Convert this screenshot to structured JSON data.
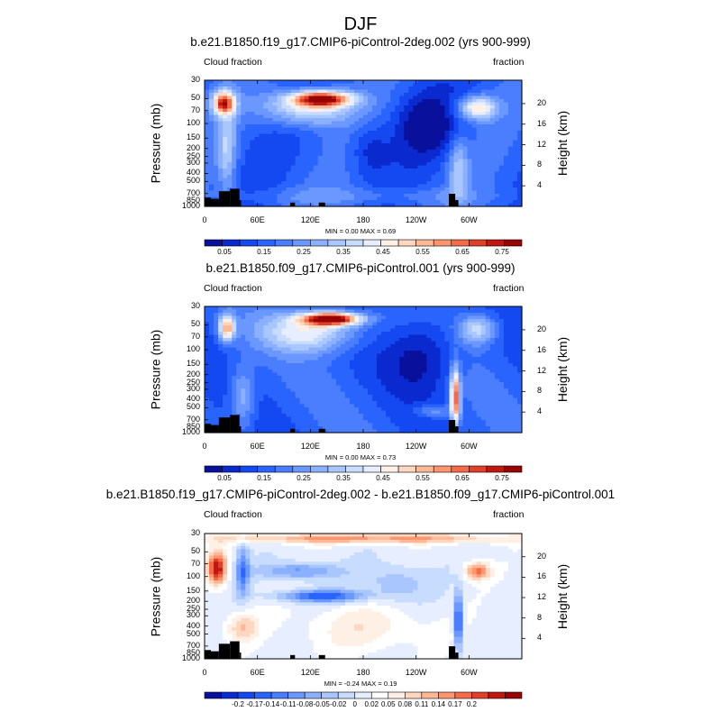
{
  "figure": {
    "title": "DJF"
  },
  "panels": [
    {
      "title": "b.e21.B1850.f19_g17.CMIP6-piControl-2deg.002 (yrs 900-999)",
      "left_label": "Cloud fraction",
      "right_label": "fraction",
      "ylabel": "Pressure (mb)",
      "ylabel_right": "Height (km)",
      "min_max": "MIN =   0.00  MAX =   0.69",
      "colorbar_ticks": [
        "0.05",
        "0.15",
        "0.25",
        "0.35",
        "0.45",
        "0.55",
        "0.65",
        "0.75"
      ],
      "colors": [
        "#08109c",
        "#0a2ad0",
        "#1448f0",
        "#2a64ff",
        "#4a7eff",
        "#6a98ff",
        "#8ab0ff",
        "#aac6ff",
        "#c8dcff",
        "#e6eeff",
        "#fff0e6",
        "#ffd6c0",
        "#ffb896",
        "#ff946e",
        "#f56a48",
        "#e0402a",
        "#c01810",
        "#960404"
      ]
    },
    {
      "title": "b.e21.B1850.f09_g17.CMIP6-piControl.001 (yrs 900-999)",
      "left_label": "Cloud fraction",
      "right_label": "fraction",
      "ylabel": "Pressure (mb)",
      "ylabel_right": "Height (km)",
      "min_max": "MIN =   0.00  MAX =   0.73",
      "colorbar_ticks": [
        "0.05",
        "0.15",
        "0.25",
        "0.35",
        "0.45",
        "0.55",
        "0.65",
        "0.75"
      ],
      "colors": [
        "#08109c",
        "#0a2ad0",
        "#1448f0",
        "#2a64ff",
        "#4a7eff",
        "#6a98ff",
        "#8ab0ff",
        "#aac6ff",
        "#c8dcff",
        "#e6eeff",
        "#fff0e6",
        "#ffd6c0",
        "#ffb896",
        "#ff946e",
        "#f56a48",
        "#e0402a",
        "#c01810",
        "#960404"
      ]
    },
    {
      "title": "b.e21.B1850.f19_g17.CMIP6-piControl-2deg.002 - b.e21.B1850.f09_g17.CMIP6-piControl.001",
      "left_label": "Cloud fraction",
      "right_label": "fraction",
      "ylabel": "Pressure (mb)",
      "ylabel_right": "Height (km)",
      "min_max": "MIN =  -0.24  MAX =   0.19",
      "colorbar_ticks": [
        "-0.2",
        "-0.17",
        "-0.14",
        "-0.11",
        "-0.08",
        "-0.05",
        "-0.02",
        "0",
        "0.02",
        "0.05",
        "0.08",
        "0.11",
        "0.14",
        "0.17",
        "0.2"
      ],
      "colors": [
        "#08109c",
        "#0a2ad0",
        "#1448f0",
        "#2a64ff",
        "#4a7eff",
        "#6a98ff",
        "#8ab0ff",
        "#aac6ff",
        "#c8dcff",
        "#e6eeff",
        "#ffffff",
        "#fff0e6",
        "#ffd6c0",
        "#ffb896",
        "#ff946e",
        "#f56a48",
        "#e0402a",
        "#c01810",
        "#960404"
      ]
    }
  ],
  "chart_data": {
    "type": "heatmap",
    "title": "DJF",
    "variable": "Cloud fraction",
    "units": "fraction",
    "xlabel": "",
    "ylabel": "Pressure (mb)",
    "ylabel_right": "Height (km)",
    "x_ticks": [
      "0",
      "60E",
      "120E",
      "180",
      "120W",
      "60W"
    ],
    "y_ticks": [
      "30",
      "50",
      "70",
      "100",
      "150",
      "200",
      "250",
      "300",
      "400",
      "500",
      "700",
      "850",
      "1000"
    ],
    "y_right_ticks": [
      "20",
      "16",
      "12",
      "8",
      "4"
    ],
    "panels": [
      {
        "name": "b.e21.B1850.f19_g17.CMIP6-piControl-2deg.002 (yrs 900-999)",
        "min": 0.0,
        "max": 0.69
      },
      {
        "name": "b.e21.B1850.f09_g17.CMIP6-piControl.001 (yrs 900-999)",
        "min": 0.0,
        "max": 0.73
      },
      {
        "name": "b.e21.B1850.f19_g17.CMIP6-piControl-2deg.002 - b.e21.B1850.f09_g17.CMIP6-piControl.001",
        "min": -0.24,
        "max": 0.19
      }
    ]
  }
}
